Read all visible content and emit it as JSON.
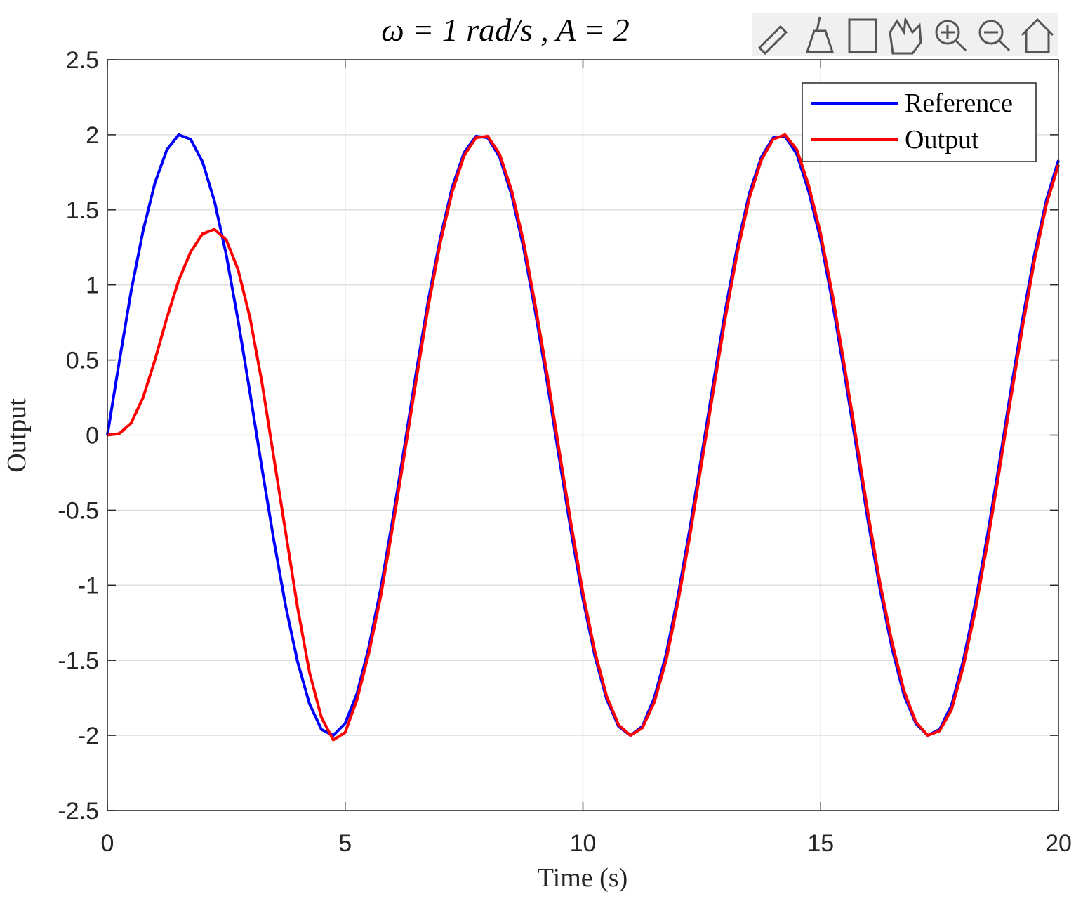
{
  "chart_data": {
    "type": "line",
    "title": "ω = 1 rad/s   ,   A = 2",
    "xlabel": "Time (s)",
    "ylabel": "Output",
    "x": [
      0,
      0.25,
      0.5,
      0.75,
      1,
      1.25,
      1.5,
      1.75,
      2,
      2.25,
      2.5,
      2.75,
      3,
      3.25,
      3.5,
      3.75,
      4,
      4.25,
      4.5,
      4.75,
      5,
      5.25,
      5.5,
      5.75,
      6,
      6.25,
      6.5,
      6.75,
      7,
      7.25,
      7.5,
      7.75,
      8,
      8.25,
      8.5,
      8.75,
      9,
      9.25,
      9.5,
      9.75,
      10,
      10.25,
      10.5,
      10.75,
      11,
      11.25,
      11.5,
      11.75,
      12,
      12.25,
      12.5,
      12.75,
      13,
      13.25,
      13.5,
      13.75,
      14,
      14.25,
      14.5,
      14.75,
      15,
      15.25,
      15.5,
      15.75,
      16,
      16.25,
      16.5,
      16.75,
      17,
      17.25,
      17.5,
      17.75,
      18,
      18.25,
      18.5,
      18.75,
      19,
      19.25,
      19.5,
      19.75,
      20
    ],
    "series": [
      {
        "name": "Reference",
        "color": "#0000ff",
        "values": [
          0,
          0.49,
          0.96,
          1.36,
          1.68,
          1.9,
          2,
          1.97,
          1.82,
          1.56,
          1.2,
          0.76,
          0.28,
          -0.22,
          -0.7,
          -1.14,
          -1.51,
          -1.79,
          -1.96,
          -2,
          -1.92,
          -1.72,
          -1.41,
          -1.02,
          -0.56,
          -0.07,
          0.43,
          0.9,
          1.31,
          1.65,
          1.88,
          1.99,
          1.98,
          1.85,
          1.6,
          1.25,
          0.82,
          0.35,
          -0.15,
          -0.64,
          -1.09,
          -1.47,
          -1.76,
          -1.94,
          -2,
          -1.94,
          -1.75,
          -1.46,
          -1.07,
          -0.62,
          -0.13,
          0.36,
          0.84,
          1.26,
          1.61,
          1.85,
          1.98,
          1.99,
          1.87,
          1.62,
          1.3,
          0.88,
          0.41,
          -0.08,
          -0.58,
          -1.03,
          -1.42,
          -1.73,
          -1.92,
          -2,
          -1.96,
          -1.8,
          -1.5,
          -1.12,
          -0.68,
          -0.2,
          0.3,
          0.78,
          1.21,
          1.57,
          1.83
        ]
      },
      {
        "name": "Output",
        "color": "#ff0000",
        "values": [
          0,
          0.01,
          0.08,
          0.25,
          0.5,
          0.78,
          1.03,
          1.22,
          1.34,
          1.37,
          1.3,
          1.1,
          0.78,
          0.35,
          -0.15,
          -0.65,
          -1.15,
          -1.58,
          -1.88,
          -2.03,
          -1.98,
          -1.76,
          -1.45,
          -1.07,
          -0.61,
          -0.12,
          0.38,
          0.86,
          1.28,
          1.62,
          1.86,
          1.98,
          1.99,
          1.87,
          1.63,
          1.29,
          0.86,
          0.4,
          -0.1,
          -0.59,
          -1.05,
          -1.44,
          -1.74,
          -1.93,
          -2,
          -1.95,
          -1.78,
          -1.5,
          -1.11,
          -0.67,
          -0.18,
          0.31,
          0.79,
          1.22,
          1.58,
          1.83,
          1.97,
          2,
          1.9,
          1.66,
          1.34,
          0.93,
          0.46,
          -0.03,
          -0.53,
          -0.99,
          -1.38,
          -1.7,
          -1.91,
          -2,
          -1.97,
          -1.83,
          -1.54,
          -1.17,
          -0.73,
          -0.25,
          0.25,
          0.73,
          1.17,
          1.54,
          1.8
        ]
      }
    ],
    "xlim": [
      0,
      20
    ],
    "xticks": [
      0,
      5,
      10,
      15,
      20
    ],
    "ylim": [
      -2.5,
      2.5
    ],
    "yticks": [
      -2.5,
      -2,
      -1.5,
      -1,
      -0.5,
      0,
      0.5,
      1,
      1.5,
      2,
      2.5
    ],
    "grid": true,
    "legend": "northeast"
  }
}
